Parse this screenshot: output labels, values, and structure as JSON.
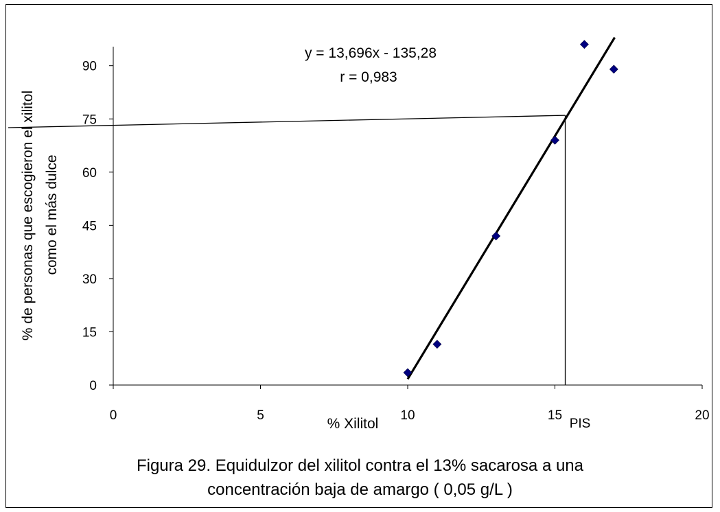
{
  "chart_data": {
    "type": "scatter",
    "xlabel": "% Xilitol",
    "ylabel_line1": "% de personas que escogieron el xilitol",
    "ylabel_line2": "como el más dulce",
    "xlim": [
      0,
      20
    ],
    "ylim": [
      0,
      100
    ],
    "x_ticks": [
      0,
      5,
      10,
      15,
      20
    ],
    "y_ticks": [
      0,
      15,
      30,
      45,
      60,
      75,
      90
    ],
    "grid": false,
    "marker_color": "#000080",
    "series": [
      {
        "points": [
          {
            "x": 10,
            "y": 3.5
          },
          {
            "x": 11,
            "y": 11.5
          },
          {
            "x": 13,
            "y": 42
          },
          {
            "x": 15,
            "y": 69
          },
          {
            "x": 16,
            "y": 96
          },
          {
            "x": 17,
            "y": 89
          }
        ]
      }
    ],
    "trendline": {
      "slope": 13.696,
      "intercept": -135.28,
      "x_start": 10,
      "x_end": 17.03
    },
    "equation": "y = 13,696x - 135,28",
    "r_label": "r = 0,983",
    "reference": {
      "x": 15.35,
      "y": 76
    },
    "pis_label": "PIS"
  },
  "caption": {
    "line1": "Figura 29. Equidulzor del xilitol contra el 13% sacarosa a una",
    "line2": "concentración baja de amargo ( 0,05 g/L )"
  }
}
